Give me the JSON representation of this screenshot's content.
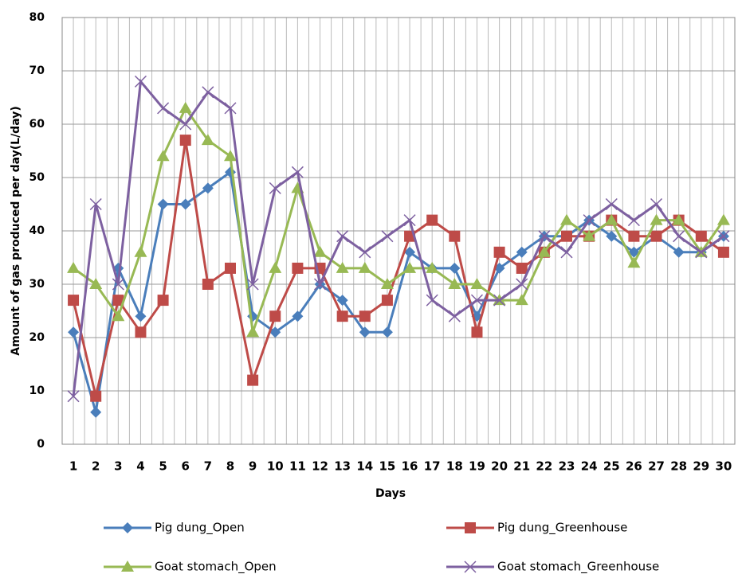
{
  "chart_data": {
    "type": "line",
    "x_label": "Days",
    "y_label": "Amount of gas produced per day(L/day)",
    "categories": [
      "1",
      "2",
      "3",
      "4",
      "5",
      "6",
      "7",
      "8",
      "9",
      "10",
      "11",
      "12",
      "13",
      "14",
      "15",
      "16",
      "17",
      "18",
      "19",
      "20",
      "21",
      "22",
      "23",
      "24",
      "25",
      "26",
      "27",
      "28",
      "29",
      "30"
    ],
    "series": [
      {
        "name": "Pig dung_Open",
        "color": "#4a7ebb",
        "marker": "diamond",
        "values": [
          21,
          6,
          33,
          24,
          45,
          45,
          48,
          51,
          24,
          21,
          24,
          30,
          27,
          21,
          21,
          36,
          33,
          33,
          24,
          33,
          36,
          39,
          39,
          42,
          39,
          36,
          39,
          36,
          36,
          39
        ]
      },
      {
        "name": "Pig dung_Greenhouse",
        "color": "#be4b48",
        "marker": "square",
        "values": [
          27,
          9,
          27,
          21,
          27,
          57,
          30,
          33,
          12,
          24,
          33,
          33,
          24,
          24,
          27,
          39,
          42,
          39,
          21,
          36,
          33,
          36,
          39,
          39,
          42,
          39,
          39,
          42,
          39,
          36
        ]
      },
      {
        "name": "Goat stomach_Open",
        "color": "#98b954",
        "marker": "triangle",
        "values": [
          33,
          30,
          24,
          36,
          54,
          63,
          57,
          54,
          21,
          33,
          48,
          36,
          33,
          33,
          30,
          33,
          33,
          30,
          30,
          27,
          27,
          36,
          42,
          39,
          42,
          34,
          42,
          42,
          36,
          42
        ]
      },
      {
        "name": "Goat stomach_Greenhouse",
        "color": "#7d60a0",
        "marker": "x",
        "values": [
          9,
          45,
          30,
          68,
          63,
          60,
          66,
          63,
          30,
          48,
          51,
          30,
          39,
          36,
          39,
          42,
          27,
          24,
          27,
          27,
          30,
          39,
          36,
          42,
          45,
          42,
          45,
          39,
          36,
          39
        ]
      }
    ],
    "ylim": [
      0,
      80
    ],
    "yticks": [
      0,
      10,
      20,
      30,
      40,
      50,
      60,
      70,
      80
    ],
    "grid": true
  }
}
